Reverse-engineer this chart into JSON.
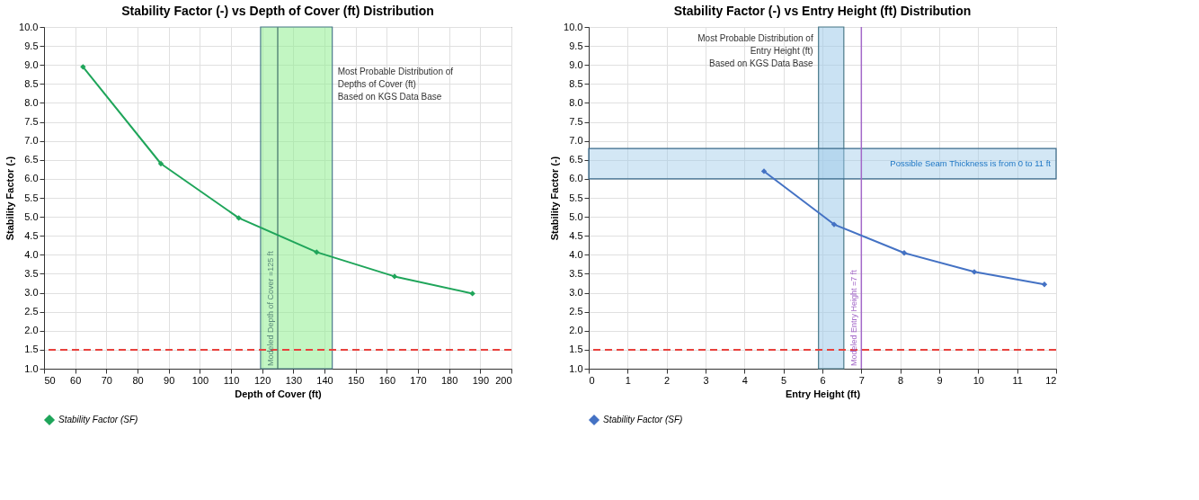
{
  "chart_data": [
    {
      "type": "line",
      "title": "Stability Factor (-) vs Depth of Cover (ft) Distribution",
      "xlabel": "Depth of Cover (ft)",
      "ylabel": "Stability Factor (-)",
      "x": [
        62.5,
        87.5,
        112.5,
        137.5,
        162.5,
        187.5
      ],
      "series": [
        {
          "name": "Stability Factor (SF)",
          "color": "#1fa55a",
          "values": [
            8.95,
            6.4,
            4.97,
            4.07,
            3.43,
            2.98
          ]
        }
      ],
      "xlim": [
        50,
        200
      ],
      "xticks": [
        50,
        60,
        70,
        80,
        90,
        100,
        110,
        120,
        130,
        140,
        150,
        160,
        170,
        180,
        190,
        200
      ],
      "ylim": [
        1.0,
        10.0
      ],
      "yticks": [
        {
          "value": 1,
          "label": "1.0"
        },
        1.5,
        {
          "value": 2,
          "label": "2.0"
        },
        2.5,
        {
          "value": 3,
          "label": "3.0"
        },
        3.5,
        {
          "value": 4,
          "label": "4.0"
        },
        4.5,
        {
          "value": 5,
          "label": "5.0"
        },
        5.5,
        {
          "value": 6,
          "label": "6.0"
        },
        6.5,
        {
          "value": 7,
          "label": "7.0"
        },
        7.5,
        {
          "value": 8,
          "label": "8.0"
        },
        8.5,
        {
          "value": 9,
          "label": "9.0"
        },
        9.5,
        {
          "value": 10,
          "label": "10.0"
        }
      ],
      "ref_lines": [
        {
          "axis": "y",
          "value": 1.5,
          "color": "#e8413c",
          "line_style": "dashed"
        },
        {
          "axis": "x",
          "value": 125,
          "label": "Modeled Depth of Cover =125 ft",
          "color": "#5a8a7a",
          "line_style": "solid"
        }
      ],
      "bands": [
        {
          "axis": "x",
          "from": 119.5,
          "to": 142.5,
          "label": "Most Probable Distribution of\nDepths of Cover (ft)\nBased on KGS Data Base",
          "color": "#90ee90"
        }
      ],
      "grid": true,
      "legend": "bottom",
      "marker": "diamond",
      "line_style": "solid"
    },
    {
      "type": "line",
      "title": "Stability Factor (-) vs Entry Height (ft) Distribution",
      "xlabel": "Entry Height (ft)",
      "ylabel": "Stability Factor (-)",
      "x": [
        4.5,
        6.3,
        8.1,
        9.9,
        11.7
      ],
      "series": [
        {
          "name": "Stability Factor (SF)",
          "color": "#4472c4",
          "values": [
            6.2,
            4.8,
            4.05,
            3.55,
            3.22
          ]
        }
      ],
      "xlim": [
        0,
        12
      ],
      "xticks": [
        0,
        1,
        2,
        3,
        4,
        5,
        6,
        7,
        8,
        9,
        10,
        11,
        12
      ],
      "ylim": [
        1.0,
        10.0
      ],
      "yticks": [
        {
          "value": 1,
          "label": "1.0"
        },
        1.5,
        {
          "value": 2,
          "label": "2.0"
        },
        2.5,
        {
          "value": 3,
          "label": "3.0"
        },
        3.5,
        {
          "value": 4,
          "label": "4.0"
        },
        4.5,
        {
          "value": 5,
          "label": "5.0"
        },
        5.5,
        {
          "value": 6,
          "label": "6.0"
        },
        6.5,
        {
          "value": 7,
          "label": "7.0"
        },
        7.5,
        {
          "value": 8,
          "label": "8.0"
        },
        8.5,
        {
          "value": 9,
          "label": "9.0"
        },
        9.5,
        {
          "value": 10,
          "label": "10.0"
        }
      ],
      "ref_lines": [
        {
          "axis": "y",
          "value": 1.5,
          "color": "#e8413c",
          "line_style": "dashed"
        },
        {
          "axis": "x",
          "value": 7,
          "label": "Modeled Entry Height =7 ft",
          "color": "#a368c8",
          "line_style": "solid"
        }
      ],
      "bands": [
        {
          "axis": "x",
          "from": 5.9,
          "to": 6.55,
          "label": "Most Probable Distribution of\nEntry Height (ft)\nBased on KGS Data Base",
          "color": "#9ecae9"
        },
        {
          "axis": "y",
          "from": 6.0,
          "to": 6.8,
          "label": "Possible Seam Thickness is from 0 to 11 ft",
          "color": "#9ecae9"
        }
      ],
      "grid": true,
      "legend": "bottom",
      "marker": "diamond",
      "line_style": "solid"
    }
  ]
}
